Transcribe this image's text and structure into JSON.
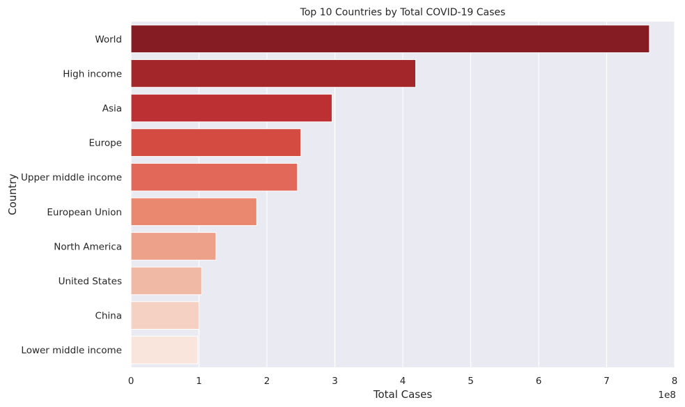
{
  "chart_data": {
    "type": "bar",
    "orientation": "horizontal",
    "title": "Top 10 Countries by Total COVID-19 Cases",
    "xlabel": "Total Cases",
    "ylabel": "Country",
    "x_offset_label": "1e8",
    "xlim": [
      0,
      800000000
    ],
    "x_ticks": [
      0,
      100000000,
      200000000,
      300000000,
      400000000,
      500000000,
      600000000,
      700000000,
      800000000
    ],
    "x_tick_labels": [
      "0",
      "1",
      "2",
      "3",
      "4",
      "5",
      "6",
      "7",
      "8"
    ],
    "grid": true,
    "categories": [
      "World",
      "High income",
      "Asia",
      "Europe",
      "Upper middle income",
      "European Union",
      "North America",
      "United States",
      "China",
      "Lower middle income"
    ],
    "values": [
      763000000,
      419000000,
      296000000,
      250000000,
      245000000,
      185000000,
      125000000,
      104000000,
      100000000,
      98000000
    ],
    "colors": [
      "#851c23",
      "#a3262b",
      "#bc2f32",
      "#d44b42",
      "#e2695a",
      "#e9886e",
      "#eda08a",
      "#f0b9a5",
      "#f4d1c3",
      "#fae5dd"
    ],
    "plot_background": "#eaeaf2",
    "grid_color": "#ffffff"
  }
}
